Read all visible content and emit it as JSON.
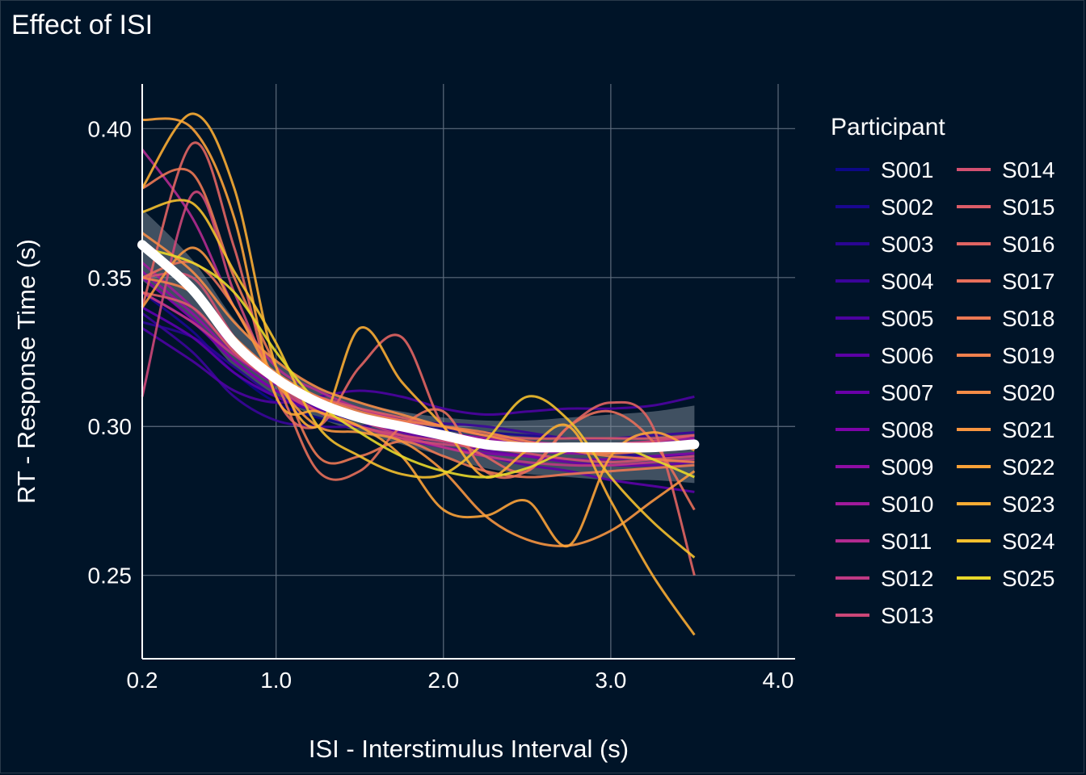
{
  "chart_data": {
    "type": "line",
    "title": "Effect of ISI",
    "xlabel": "ISI - Interstimulus Interval (s)",
    "ylabel": "RT - Response Time (s)",
    "xlim": [
      0.2,
      4.0
    ],
    "ylim": [
      0.222,
      0.415
    ],
    "x_tick_labels": [
      "0.2",
      "1.0",
      "2.0",
      "3.0",
      "4.0"
    ],
    "x_tick_values": [
      0.2,
      1.0,
      2.0,
      3.0,
      4.0
    ],
    "y_tick_labels": [
      "0.25",
      "0.30",
      "0.35",
      "0.40"
    ],
    "y_tick_values": [
      0.25,
      0.3,
      0.35,
      0.4
    ],
    "grid": true,
    "background": "#001428",
    "legend": {
      "title": "Participant",
      "position": "right",
      "columns": 2
    },
    "x": [
      0.2,
      0.5,
      0.75,
      1.0,
      1.25,
      1.5,
      1.75,
      2.0,
      2.25,
      2.5,
      2.75,
      3.0,
      3.25,
      3.5
    ],
    "series": [
      {
        "name": "S001",
        "color": "#0d0887",
        "values": [
          0.34,
          0.33,
          0.318,
          0.308,
          0.303,
          0.3,
          0.297,
          0.295,
          0.294,
          0.293,
          0.292,
          0.292,
          0.293,
          0.293
        ]
      },
      {
        "name": "S002",
        "color": "#1a0790",
        "values": [
          0.345,
          0.332,
          0.318,
          0.31,
          0.306,
          0.303,
          0.301,
          0.299,
          0.298,
          0.297,
          0.296,
          0.296,
          0.296,
          0.296
        ]
      },
      {
        "name": "S003",
        "color": "#2a0593",
        "values": [
          0.335,
          0.33,
          0.32,
          0.31,
          0.305,
          0.302,
          0.3,
          0.298,
          0.296,
          0.294,
          0.292,
          0.291,
          0.29,
          0.29
        ]
      },
      {
        "name": "S004",
        "color": "#3a049a",
        "values": [
          0.338,
          0.325,
          0.31,
          0.302,
          0.3,
          0.3,
          0.301,
          0.301,
          0.3,
          0.298,
          0.296,
          0.296,
          0.297,
          0.298
        ]
      },
      {
        "name": "S005",
        "color": "#4c02a1",
        "values": [
          0.333,
          0.322,
          0.312,
          0.308,
          0.31,
          0.312,
          0.31,
          0.306,
          0.304,
          0.305,
          0.306,
          0.306,
          0.307,
          0.31
        ]
      },
      {
        "name": "S006",
        "color": "#5c01a6",
        "values": [
          0.34,
          0.33,
          0.318,
          0.31,
          0.305,
          0.3,
          0.297,
          0.293,
          0.29,
          0.287,
          0.285,
          0.282,
          0.28,
          0.278
        ]
      },
      {
        "name": "S007",
        "color": "#6a00a8",
        "values": [
          0.345,
          0.335,
          0.322,
          0.312,
          0.306,
          0.302,
          0.298,
          0.295,
          0.292,
          0.29,
          0.288,
          0.287,
          0.287,
          0.288
        ]
      },
      {
        "name": "S008",
        "color": "#7e03a8",
        "values": [
          0.35,
          0.336,
          0.322,
          0.312,
          0.305,
          0.3,
          0.296,
          0.293,
          0.291,
          0.29,
          0.289,
          0.289,
          0.29,
          0.291
        ]
      },
      {
        "name": "S009",
        "color": "#8f0da4",
        "values": [
          0.352,
          0.338,
          0.324,
          0.314,
          0.308,
          0.304,
          0.3,
          0.297,
          0.294,
          0.292,
          0.291,
          0.291,
          0.292,
          0.293
        ]
      },
      {
        "name": "S010",
        "color": "#a01a9c",
        "values": [
          0.355,
          0.34,
          0.326,
          0.316,
          0.31,
          0.306,
          0.302,
          0.298,
          0.296,
          0.294,
          0.293,
          0.294,
          0.295,
          0.296
        ]
      },
      {
        "name": "S011",
        "color": "#b12a90",
        "values": [
          0.393,
          0.37,
          0.34,
          0.32,
          0.312,
          0.306,
          0.302,
          0.3,
          0.297,
          0.295,
          0.294,
          0.294,
          0.295,
          0.297
        ]
      },
      {
        "name": "S012",
        "color": "#bf3984",
        "values": [
          0.345,
          0.335,
          0.324,
          0.315,
          0.308,
          0.302,
          0.297,
          0.293,
          0.29,
          0.288,
          0.287,
          0.287,
          0.288,
          0.289
        ]
      },
      {
        "name": "S013",
        "color": "#cc4778",
        "values": [
          0.31,
          0.378,
          0.345,
          0.315,
          0.305,
          0.3,
          0.296,
          0.294,
          0.293,
          0.292,
          0.292,
          0.294,
          0.295,
          0.297
        ]
      },
      {
        "name": "S014",
        "color": "#d35171",
        "values": [
          0.35,
          0.35,
          0.33,
          0.315,
          0.305,
          0.3,
          0.297,
          0.295,
          0.293,
          0.291,
          0.289,
          0.288,
          0.289,
          0.29
        ]
      },
      {
        "name": "S015",
        "color": "#db5c68",
        "values": [
          0.345,
          0.34,
          0.325,
          0.315,
          0.31,
          0.306,
          0.303,
          0.3,
          0.297,
          0.296,
          0.296,
          0.296,
          0.296,
          0.297
        ]
      },
      {
        "name": "S016",
        "color": "#e16462",
        "values": [
          0.34,
          0.395,
          0.36,
          0.31,
          0.3,
          0.32,
          0.33,
          0.3,
          0.29,
          0.285,
          0.3,
          0.308,
          0.3,
          0.25
        ]
      },
      {
        "name": "S017",
        "color": "#e76f5a",
        "values": [
          0.35,
          0.355,
          0.34,
          0.315,
          0.285,
          0.285,
          0.3,
          0.305,
          0.285,
          0.285,
          0.3,
          0.305,
          0.295,
          0.272
        ]
      },
      {
        "name": "S018",
        "color": "#ec7853",
        "values": [
          0.38,
          0.385,
          0.35,
          0.32,
          0.29,
          0.29,
          0.295,
          0.29,
          0.285,
          0.283,
          0.284,
          0.285,
          0.286,
          0.287
        ]
      },
      {
        "name": "S019",
        "color": "#f0814d",
        "values": [
          0.35,
          0.345,
          0.33,
          0.318,
          0.31,
          0.305,
          0.302,
          0.3,
          0.298,
          0.295,
          0.292,
          0.29,
          0.289,
          0.288
        ]
      },
      {
        "name": "S020",
        "color": "#f48c47",
        "values": [
          0.365,
          0.352,
          0.335,
          0.322,
          0.313,
          0.308,
          0.304,
          0.3,
          0.297,
          0.294,
          0.292,
          0.291,
          0.292,
          0.294
        ]
      },
      {
        "name": "S021",
        "color": "#f79540",
        "values": [
          0.34,
          0.36,
          0.34,
          0.315,
          0.3,
          0.298,
          0.295,
          0.285,
          0.27,
          0.262,
          0.26,
          0.265,
          0.275,
          0.285
        ]
      },
      {
        "name": "S022",
        "color": "#fba238",
        "values": [
          0.403,
          0.4,
          0.37,
          0.31,
          0.305,
          0.3,
          0.29,
          0.272,
          0.27,
          0.275,
          0.26,
          0.29,
          0.298,
          0.292
        ]
      },
      {
        "name": "S023",
        "color": "#f9ac33",
        "values": [
          0.38,
          0.405,
          0.38,
          0.32,
          0.3,
          0.333,
          0.315,
          0.3,
          0.283,
          0.292,
          0.3,
          0.275,
          0.25,
          0.23
        ]
      },
      {
        "name": "S024",
        "color": "#f4c02e",
        "values": [
          0.372,
          0.375,
          0.352,
          0.328,
          0.3,
          0.29,
          0.284,
          0.284,
          0.295,
          0.31,
          0.302,
          0.283,
          0.268,
          0.256
        ]
      },
      {
        "name": "S025",
        "color": "#e8d82a",
        "values": [
          0.36,
          0.355,
          0.345,
          0.325,
          0.308,
          0.298,
          0.29,
          0.285,
          0.283,
          0.286,
          0.292,
          0.294,
          0.289,
          0.283
        ]
      }
    ],
    "overall_trend": {
      "color": "#ffffff",
      "band_color": "#7f8c99",
      "x": [
        0.2,
        0.5,
        0.75,
        1.0,
        1.25,
        1.5,
        1.75,
        2.0,
        2.25,
        2.5,
        2.75,
        3.0,
        3.25,
        3.5
      ],
      "values": [
        0.361,
        0.346,
        0.328,
        0.316,
        0.308,
        0.303,
        0.3,
        0.297,
        0.294,
        0.293,
        0.293,
        0.293,
        0.293,
        0.294
      ],
      "band_lower": [
        0.349,
        0.336,
        0.32,
        0.31,
        0.303,
        0.298,
        0.294,
        0.29,
        0.286,
        0.284,
        0.283,
        0.282,
        0.282,
        0.281
      ],
      "band_upper": [
        0.373,
        0.356,
        0.336,
        0.322,
        0.313,
        0.308,
        0.305,
        0.303,
        0.302,
        0.302,
        0.303,
        0.304,
        0.305,
        0.307
      ]
    }
  }
}
